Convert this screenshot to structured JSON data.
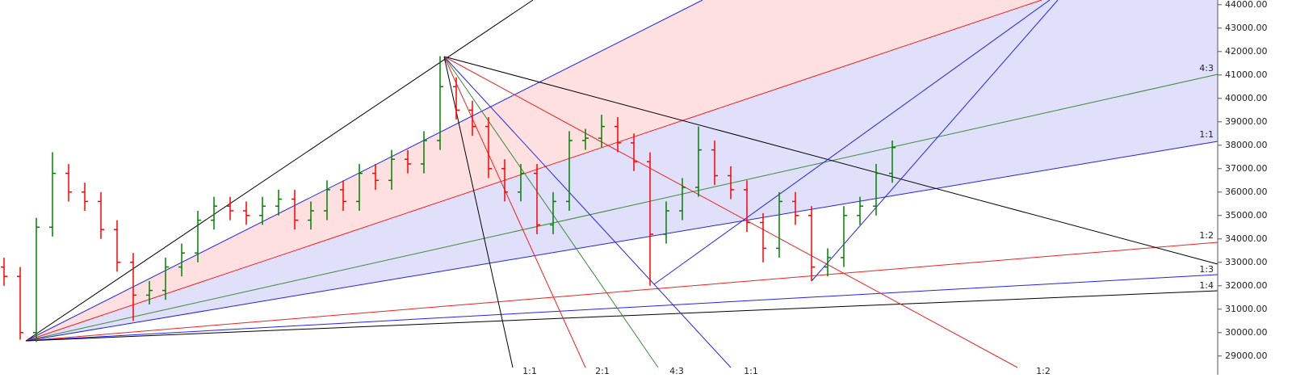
{
  "chart_data": {
    "type": "ohlc",
    "up_color": "#008000",
    "down_color": "#ff0000",
    "open": [
      32800,
      32400,
      30000,
      34500,
      36800,
      36000,
      35600,
      34400,
      33000,
      31600,
      31800,
      32800,
      33400,
      34800,
      35400,
      35200,
      35000,
      35400,
      35700,
      34800,
      35200,
      36100,
      35600,
      36800,
      36500,
      37400,
      37200,
      38200,
      40500,
      39500,
      38800,
      37000,
      36000,
      36800,
      34600,
      35600,
      38200,
      38300,
      38800,
      38100,
      37300,
      34200,
      35200,
      36200,
      37800,
      36700,
      36100,
      34700,
      33600,
      35600,
      35000,
      32800,
      33200,
      35000,
      35400,
      36800
    ],
    "high": [
      33200,
      32800,
      34900,
      37700,
      37200,
      36400,
      36000,
      34800,
      33400,
      32200,
      33200,
      33800,
      35200,
      35800,
      35800,
      35600,
      35800,
      36100,
      36100,
      35600,
      36500,
      36500,
      37200,
      37200,
      37800,
      37800,
      38600,
      41800,
      40900,
      39900,
      39200,
      37400,
      37200,
      37200,
      36000,
      38600,
      38700,
      39300,
      39200,
      38500,
      37700,
      35600,
      36600,
      38800,
      38200,
      37100,
      36500,
      35100,
      36000,
      36000,
      35400,
      33600,
      35400,
      35800,
      37200,
      38200
    ],
    "low": [
      32000,
      29700,
      29600,
      34100,
      35600,
      35200,
      34000,
      32600,
      30500,
      31200,
      31400,
      32400,
      33000,
      34400,
      34800,
      34600,
      34600,
      35000,
      34400,
      34400,
      34800,
      35200,
      35200,
      36100,
      36100,
      36800,
      36800,
      37800,
      39100,
      38400,
      36600,
      35600,
      35600,
      34200,
      34200,
      35200,
      37800,
      37900,
      37700,
      36900,
      32000,
      33800,
      34800,
      35800,
      36300,
      35700,
      34300,
      33000,
      33200,
      34600,
      32200,
      32400,
      32800,
      34600,
      35000,
      36400
    ],
    "close": [
      32400,
      30000,
      34500,
      36800,
      36000,
      35600,
      34400,
      33000,
      31600,
      31800,
      32800,
      33400,
      34800,
      35400,
      35200,
      35000,
      35400,
      35700,
      34800,
      35200,
      36100,
      35600,
      36800,
      36500,
      37400,
      37200,
      38200,
      40500,
      39500,
      38800,
      37000,
      36000,
      36800,
      34600,
      35600,
      38200,
      38300,
      38800,
      38100,
      37300,
      34200,
      35200,
      36200,
      37800,
      36700,
      36100,
      34700,
      33600,
      35600,
      35000,
      32800,
      33200,
      35000,
      35400,
      36800,
      37900
    ],
    "ylim": [
      28200,
      44200
    ],
    "yticks": [
      {
        "value": 29000,
        "label": "29000.00"
      },
      {
        "value": 30000,
        "label": "30000.00"
      },
      {
        "value": 31000,
        "label": "31000.00"
      },
      {
        "value": 32000,
        "label": "32000.00"
      },
      {
        "value": 33000,
        "label": "33000.00"
      },
      {
        "value": 34000,
        "label": "34000.00"
      },
      {
        "value": 35000,
        "label": "35000.00"
      },
      {
        "value": 36000,
        "label": "36000.00"
      },
      {
        "value": 37000,
        "label": "37000.00"
      },
      {
        "value": 38000,
        "label": "38000.00"
      },
      {
        "value": 39000,
        "label": "39000.00"
      },
      {
        "value": 40000,
        "label": "40000.00"
      },
      {
        "value": 41000,
        "label": "41000.00"
      },
      {
        "value": 42000,
        "label": "42000.00"
      },
      {
        "value": 43000,
        "label": "43000.00"
      },
      {
        "value": 44000,
        "label": "44000.00"
      }
    ],
    "fan_labels_right": [
      "4:3",
      "1:1",
      "1:2",
      "1:3",
      "1:4"
    ],
    "fan_labels_bottom": [
      "1:1",
      "2:1",
      "4:3",
      "1:1",
      "1:2"
    ]
  }
}
